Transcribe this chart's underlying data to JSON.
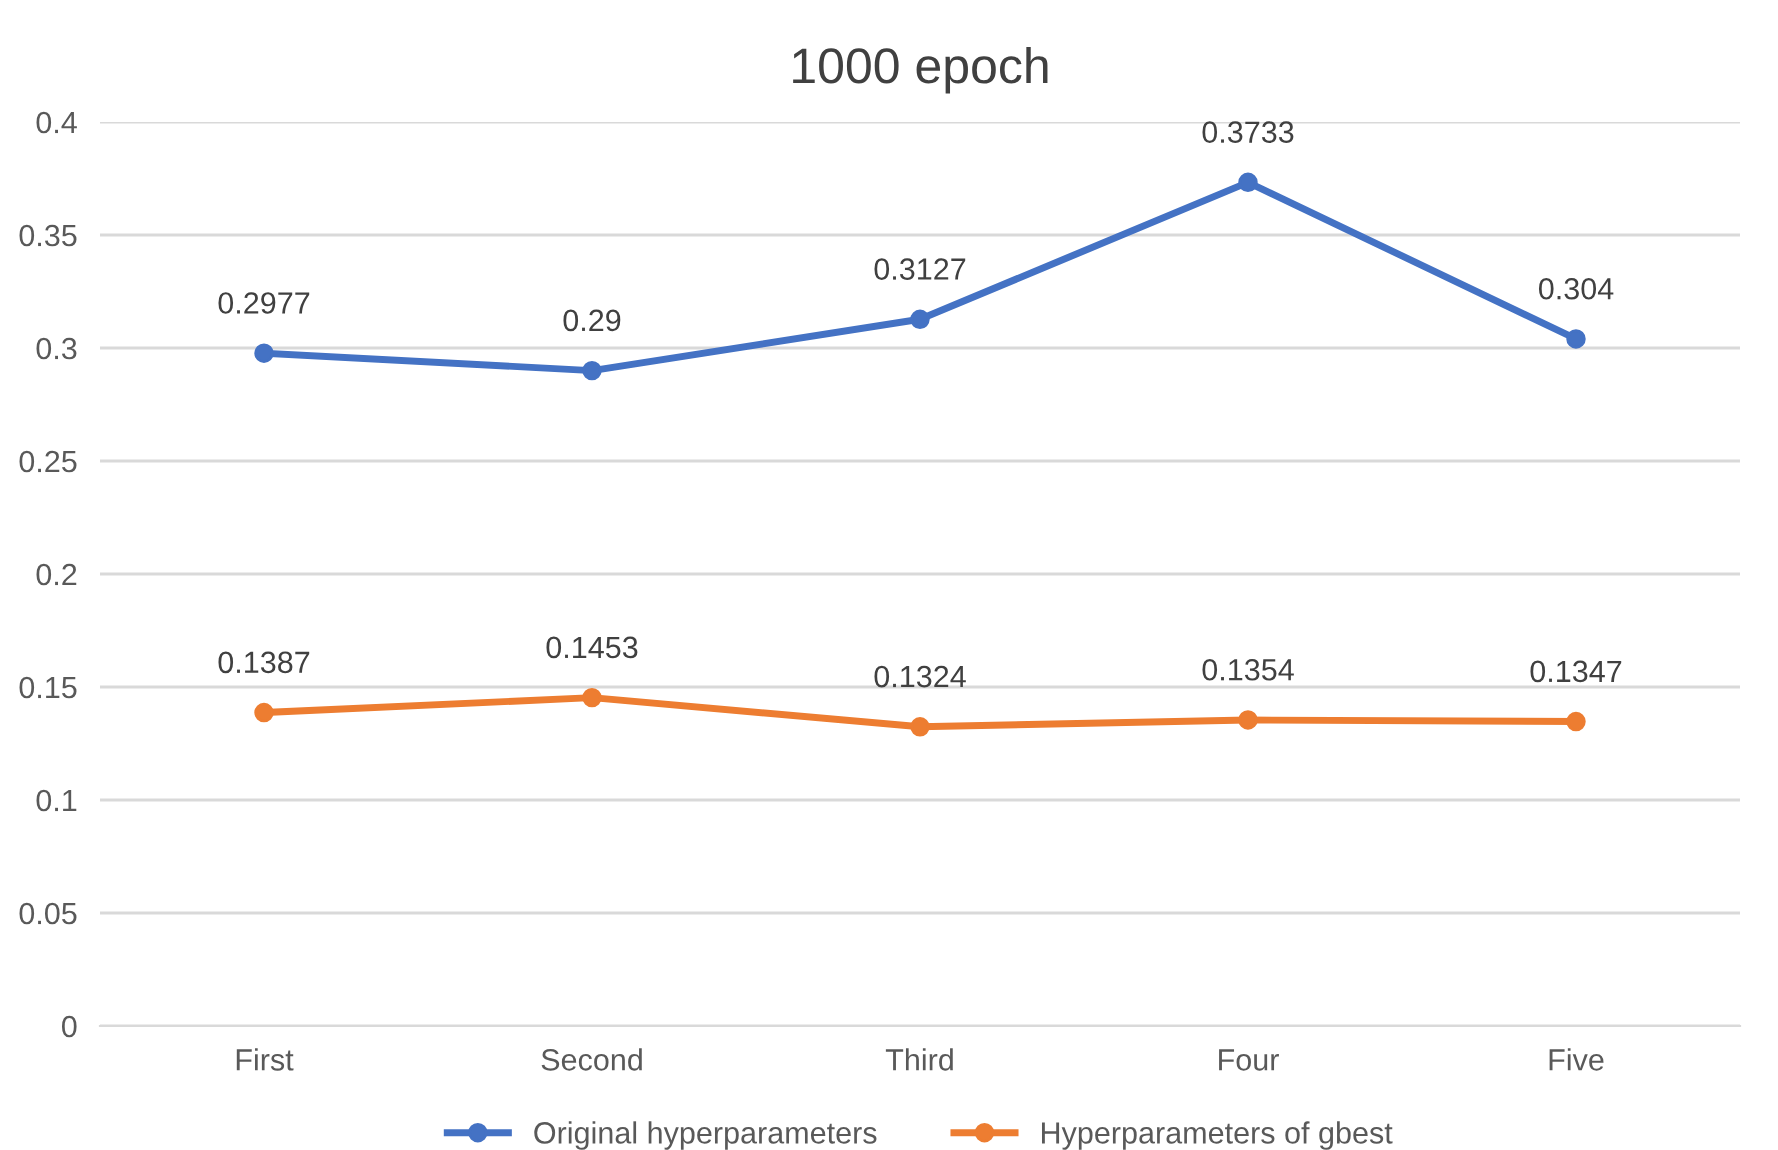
{
  "chart_data": {
    "type": "line",
    "title": "1000 epoch",
    "categories": [
      "First",
      "Second",
      "Third",
      "Four",
      "Five"
    ],
    "series": [
      {
        "name": "Original hyperparameters",
        "color": "#4472c4",
        "values": [
          0.2977,
          0.29,
          0.3127,
          0.3733,
          0.304
        ]
      },
      {
        "name": "Hyperparameters of gbest",
        "color": "#ed7d31",
        "values": [
          0.1387,
          0.1453,
          0.1324,
          0.1354,
          0.1347
        ]
      }
    ],
    "ylim": [
      0,
      0.4
    ],
    "yticks": [
      0,
      0.05,
      0.1,
      0.15,
      0.2,
      0.25,
      0.3,
      0.35,
      0.4
    ],
    "grid": "y",
    "legend": "bottom",
    "marker": "circle",
    "line_style": "solid",
    "data_labels": true
  }
}
